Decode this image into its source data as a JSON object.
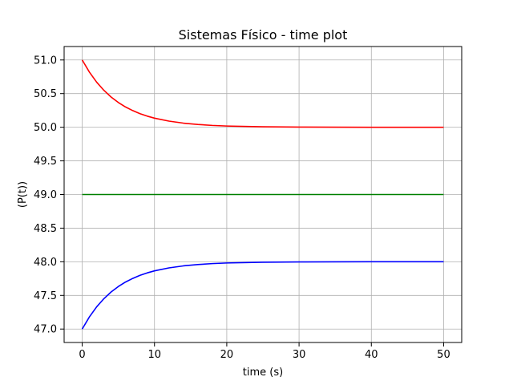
{
  "chart_data": {
    "type": "line",
    "title": "Sistemas Físico - time plot",
    "xlabel": "time (s)",
    "ylabel": "(P(t))",
    "xlim": [
      -2.5,
      52.5
    ],
    "ylim": [
      46.8,
      51.2
    ],
    "xticks": [
      0,
      10,
      20,
      30,
      40,
      50
    ],
    "xtick_labels": [
      "0",
      "10",
      "20",
      "30",
      "40",
      "50"
    ],
    "yticks": [
      47.0,
      47.5,
      48.0,
      48.5,
      49.0,
      49.5,
      50.0,
      50.5,
      51.0
    ],
    "ytick_labels": [
      "47.0",
      "47.5",
      "48.0",
      "48.5",
      "49.0",
      "49.5",
      "50.0",
      "50.5",
      "51.0"
    ],
    "grid": true,
    "series": [
      {
        "color": "#ff0000",
        "x": [
          0,
          1,
          2,
          3,
          4,
          5,
          6,
          7,
          8,
          9,
          10,
          12,
          14,
          16,
          18,
          20,
          25,
          30,
          35,
          40,
          45,
          50
        ],
        "y": [
          51.0,
          50.819,
          50.67,
          50.549,
          50.449,
          50.368,
          50.301,
          50.247,
          50.202,
          50.165,
          50.135,
          50.091,
          50.061,
          50.041,
          50.027,
          50.018,
          50.007,
          50.002,
          50.001,
          50.0,
          50.0,
          50.0
        ]
      },
      {
        "color": "#008000",
        "x": [
          0,
          50
        ],
        "y": [
          49.0,
          49.0
        ]
      },
      {
        "color": "#0000ff",
        "x": [
          0,
          1,
          2,
          3,
          4,
          5,
          6,
          7,
          8,
          9,
          10,
          12,
          14,
          16,
          18,
          20,
          25,
          30,
          35,
          40,
          45,
          50
        ],
        "y": [
          47.0,
          47.181,
          47.33,
          47.451,
          47.551,
          47.632,
          47.699,
          47.753,
          47.798,
          47.835,
          47.865,
          47.909,
          47.939,
          47.959,
          47.973,
          47.982,
          47.993,
          47.998,
          47.999,
          48.0,
          48.0,
          48.0
        ]
      }
    ]
  }
}
